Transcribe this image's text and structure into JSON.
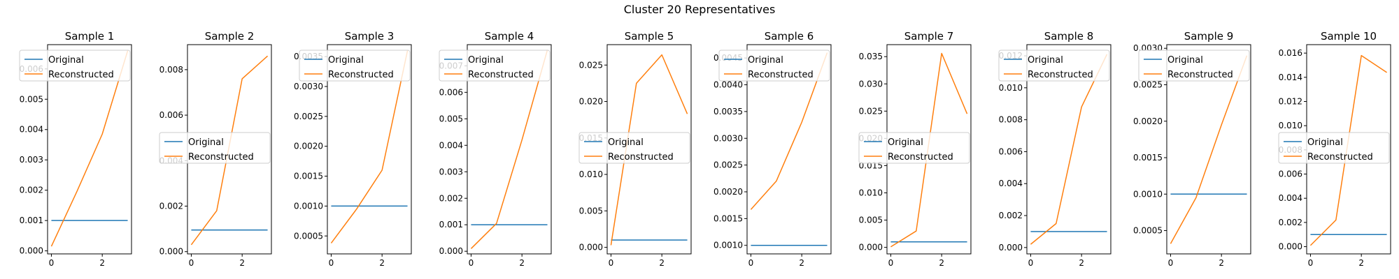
{
  "figure": {
    "title": "Cluster 20 Representatives"
  },
  "legend_labels": [
    "Original",
    "Reconstructed"
  ],
  "colors": {
    "original": "#1f77b4",
    "reconstructed": "#ff7f0e"
  },
  "chart_data": [
    {
      "type": "line",
      "title": "Sample 1",
      "x": [
        0,
        1,
        2,
        3
      ],
      "ylim": [
        -0.0001,
        0.0068
      ],
      "yticks": [
        0.0,
        0.001,
        0.002,
        0.003,
        0.004,
        0.005,
        0.006
      ],
      "ytick_labels": [
        "0.000",
        "0.001",
        "0.002",
        "0.003",
        "0.004",
        "0.005",
        "0.006"
      ],
      "xticks": [
        0,
        2
      ],
      "legend": "upper-left",
      "series": [
        {
          "name": "Original",
          "values": [
            0.001,
            0.001,
            0.001,
            0.001
          ]
        },
        {
          "name": "Reconstructed",
          "values": [
            0.00015,
            0.00195,
            0.00385,
            0.0066
          ]
        }
      ]
    },
    {
      "type": "line",
      "title": "Sample 2",
      "x": [
        0,
        1,
        2,
        3
      ],
      "ylim": [
        -0.0001,
        0.0091
      ],
      "yticks": [
        0.0,
        0.002,
        0.004,
        0.006,
        0.008
      ],
      "ytick_labels": [
        "0.000",
        "0.002",
        "0.004",
        "0.006",
        "0.008"
      ],
      "xticks": [
        0,
        2
      ],
      "legend": "center-left",
      "series": [
        {
          "name": "Original",
          "values": [
            0.00095,
            0.00095,
            0.00095,
            0.00095
          ]
        },
        {
          "name": "Reconstructed",
          "values": [
            0.0003,
            0.0018,
            0.0076,
            0.0086
          ]
        }
      ]
    },
    {
      "type": "line",
      "title": "Sample 3",
      "x": [
        0,
        1,
        2,
        3
      ],
      "ylim": [
        0.0002,
        0.0037
      ],
      "yticks": [
        0.0005,
        0.001,
        0.0015,
        0.002,
        0.0025,
        0.003,
        0.0035
      ],
      "ytick_labels": [
        "0.0005",
        "0.0010",
        "0.0015",
        "0.0020",
        "0.0025",
        "0.0030",
        "0.0035"
      ],
      "xticks": [
        0,
        2
      ],
      "legend": "upper-left",
      "series": [
        {
          "name": "Original",
          "values": [
            0.001,
            0.001,
            0.001,
            0.001
          ]
        },
        {
          "name": "Reconstructed",
          "values": [
            0.00038,
            0.00095,
            0.0016,
            0.0036
          ]
        }
      ]
    },
    {
      "type": "line",
      "title": "Sample 4",
      "x": [
        0,
        1,
        2,
        3
      ],
      "ylim": [
        -0.0001,
        0.0078
      ],
      "yticks": [
        0.0,
        0.001,
        0.002,
        0.003,
        0.004,
        0.005,
        0.006,
        0.007
      ],
      "ytick_labels": [
        "0.000",
        "0.001",
        "0.002",
        "0.003",
        "0.004",
        "0.005",
        "0.006",
        "0.007"
      ],
      "xticks": [
        0,
        2
      ],
      "legend": "upper-left",
      "series": [
        {
          "name": "Original",
          "values": [
            0.001,
            0.001,
            0.001,
            0.001
          ]
        },
        {
          "name": "Reconstructed",
          "values": [
            0.0001,
            0.00105,
            0.0042,
            0.0076
          ]
        }
      ]
    },
    {
      "type": "line",
      "title": "Sample 5",
      "x": [
        0,
        1,
        2,
        3
      ],
      "ylim": [
        -0.0009,
        0.0278
      ],
      "yticks": [
        0.0,
        0.005,
        0.01,
        0.015,
        0.02,
        0.025
      ],
      "ytick_labels": [
        "0.000",
        "0.005",
        "0.010",
        "0.015",
        "0.020",
        "0.025"
      ],
      "xticks": [
        0,
        2
      ],
      "legend": "center-left",
      "series": [
        {
          "name": "Original",
          "values": [
            0.001,
            0.001,
            0.001,
            0.001
          ]
        },
        {
          "name": "Reconstructed",
          "values": [
            0.0003,
            0.0225,
            0.0264,
            0.0183
          ]
        }
      ]
    },
    {
      "type": "line",
      "title": "Sample 6",
      "x": [
        0,
        1,
        2,
        3
      ],
      "ylim": [
        0.00084,
        0.00475
      ],
      "yticks": [
        0.001,
        0.0015,
        0.002,
        0.0025,
        0.003,
        0.0035,
        0.004,
        0.0045
      ],
      "ytick_labels": [
        "0.0010",
        "0.0015",
        "0.0020",
        "0.0025",
        "0.0030",
        "0.0035",
        "0.0040",
        "0.0045"
      ],
      "xticks": [
        0,
        2
      ],
      "legend": "upper-left",
      "series": [
        {
          "name": "Original",
          "values": [
            0.001,
            0.001,
            0.001,
            0.001
          ]
        },
        {
          "name": "Reconstructed",
          "values": [
            0.00167,
            0.0022,
            0.0033,
            0.0046
          ]
        }
      ]
    },
    {
      "type": "line",
      "title": "Sample 7",
      "x": [
        0,
        1,
        2,
        3
      ],
      "ylim": [
        -0.0012,
        0.0372
      ],
      "yticks": [
        0.0,
        0.005,
        0.01,
        0.015,
        0.02,
        0.025,
        0.03,
        0.035
      ],
      "ytick_labels": [
        "0.000",
        "0.005",
        "0.010",
        "0.015",
        "0.020",
        "0.025",
        "0.030",
        "0.035"
      ],
      "xticks": [
        0,
        2
      ],
      "legend": "center-left",
      "series": [
        {
          "name": "Original",
          "values": [
            0.001,
            0.001,
            0.001,
            0.001
          ]
        },
        {
          "name": "Reconstructed",
          "values": [
            0.0001,
            0.003,
            0.0356,
            0.0245
          ]
        }
      ]
    },
    {
      "type": "line",
      "title": "Sample 8",
      "x": [
        0,
        1,
        2,
        3
      ],
      "ylim": [
        -0.0004,
        0.0127
      ],
      "yticks": [
        0.0,
        0.002,
        0.004,
        0.006,
        0.008,
        0.01,
        0.012
      ],
      "ytick_labels": [
        "0.000",
        "0.002",
        "0.004",
        "0.006",
        "0.008",
        "0.010",
        "0.012"
      ],
      "xticks": [
        0,
        2
      ],
      "legend": "upper-left",
      "series": [
        {
          "name": "Original",
          "values": [
            0.001,
            0.001,
            0.001,
            0.001
          ]
        },
        {
          "name": "Reconstructed",
          "values": [
            0.0002,
            0.0015,
            0.0088,
            0.0121
          ]
        }
      ]
    },
    {
      "type": "line",
      "title": "Sample 9",
      "x": [
        0,
        1,
        2,
        3
      ],
      "ylim": [
        0.00018,
        0.00305
      ],
      "yticks": [
        0.0005,
        0.001,
        0.0015,
        0.002,
        0.0025,
        0.003
      ],
      "ytick_labels": [
        "0.0005",
        "0.0010",
        "0.0015",
        "0.0020",
        "0.0025",
        "0.0030"
      ],
      "xticks": [
        0,
        2
      ],
      "legend": "upper-left",
      "series": [
        {
          "name": "Original",
          "values": [
            0.001,
            0.001,
            0.001,
            0.001
          ]
        },
        {
          "name": "Reconstructed",
          "values": [
            0.00032,
            0.00095,
            0.00195,
            0.0029
          ]
        }
      ]
    },
    {
      "type": "line",
      "title": "Sample 10",
      "x": [
        0,
        1,
        2,
        3
      ],
      "ylim": [
        -0.0006,
        0.0167
      ],
      "yticks": [
        0.0,
        0.002,
        0.004,
        0.006,
        0.008,
        0.01,
        0.012,
        0.014,
        0.016
      ],
      "ytick_labels": [
        "0.000",
        "0.002",
        "0.004",
        "0.006",
        "0.008",
        "0.010",
        "0.012",
        "0.014",
        "0.016"
      ],
      "xticks": [
        0,
        2
      ],
      "legend": "center-left",
      "series": [
        {
          "name": "Original",
          "values": [
            0.001,
            0.001,
            0.001,
            0.001
          ]
        },
        {
          "name": "Reconstructed",
          "values": [
            0.0001,
            0.0022,
            0.0158,
            0.0144
          ]
        }
      ]
    }
  ]
}
